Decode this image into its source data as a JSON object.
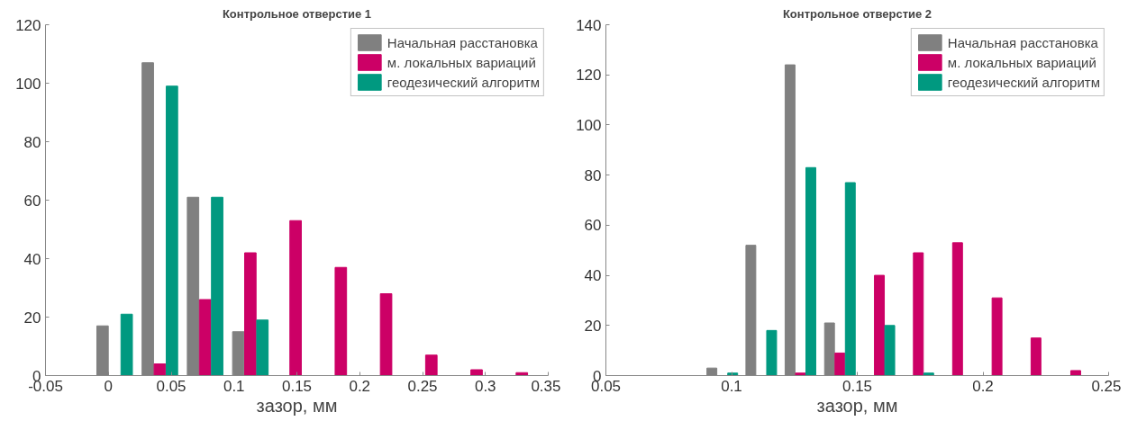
{
  "chart_data": [
    {
      "type": "bar",
      "title": "Контрольное отверстие 1",
      "xlabel": "зазор, мм",
      "x": [
        0.005,
        0.041,
        0.077,
        0.113,
        0.149,
        0.185,
        0.221,
        0.257,
        0.293,
        0.329
      ],
      "xlim": [
        -0.05,
        0.35
      ],
      "xticks": [
        -0.05,
        0,
        0.05,
        0.1,
        0.15,
        0.2,
        0.25,
        0.3,
        0.35
      ],
      "ylim": [
        0,
        120
      ],
      "yticks": [
        0,
        20,
        40,
        60,
        80,
        100,
        120
      ],
      "grid": false,
      "legend": "top right",
      "series": [
        {
          "name": "Начальная расстановка",
          "color": "#808080",
          "values": [
            17,
            107,
            61,
            15,
            0,
            0,
            0,
            0,
            0,
            0
          ]
        },
        {
          "name": "м. локальных вариаций",
          "color": "#cc0066",
          "values": [
            0,
            4,
            26,
            42,
            53,
            37,
            28,
            7,
            2,
            1
          ]
        },
        {
          "name": "геодезический алгоритм",
          "color": "#009980",
          "values": [
            21,
            99,
            61,
            19,
            0,
            0,
            0,
            0,
            0,
            0
          ]
        }
      ]
    },
    {
      "type": "bar",
      "title": "Контрольное отверстие 2",
      "xlabel": "зазор, мм",
      "x": [
        0.0963,
        0.1118,
        0.1274,
        0.1431,
        0.1588,
        0.1743,
        0.1899,
        0.2056,
        0.2211,
        0.2369
      ],
      "xlim": [
        0.05,
        0.25
      ],
      "xticks": [
        0.05,
        0.1,
        0.15,
        0.2,
        0.25
      ],
      "ylim": [
        0,
        140
      ],
      "yticks": [
        0,
        20,
        40,
        60,
        80,
        100,
        120,
        140
      ],
      "grid": false,
      "legend": "top right",
      "series": [
        {
          "name": "Начальная расстановка",
          "color": "#808080",
          "values": [
            3,
            52,
            124,
            21,
            0,
            0,
            0,
            0,
            0,
            0
          ]
        },
        {
          "name": "м. локальных вариаций",
          "color": "#cc0066",
          "values": [
            0,
            0,
            1,
            9,
            40,
            49,
            53,
            31,
            15,
            2
          ]
        },
        {
          "name": "геодезический алгоритм",
          "color": "#009980",
          "values": [
            1,
            18,
            83,
            77,
            20,
            1,
            0,
            0,
            0,
            0
          ]
        }
      ]
    }
  ]
}
